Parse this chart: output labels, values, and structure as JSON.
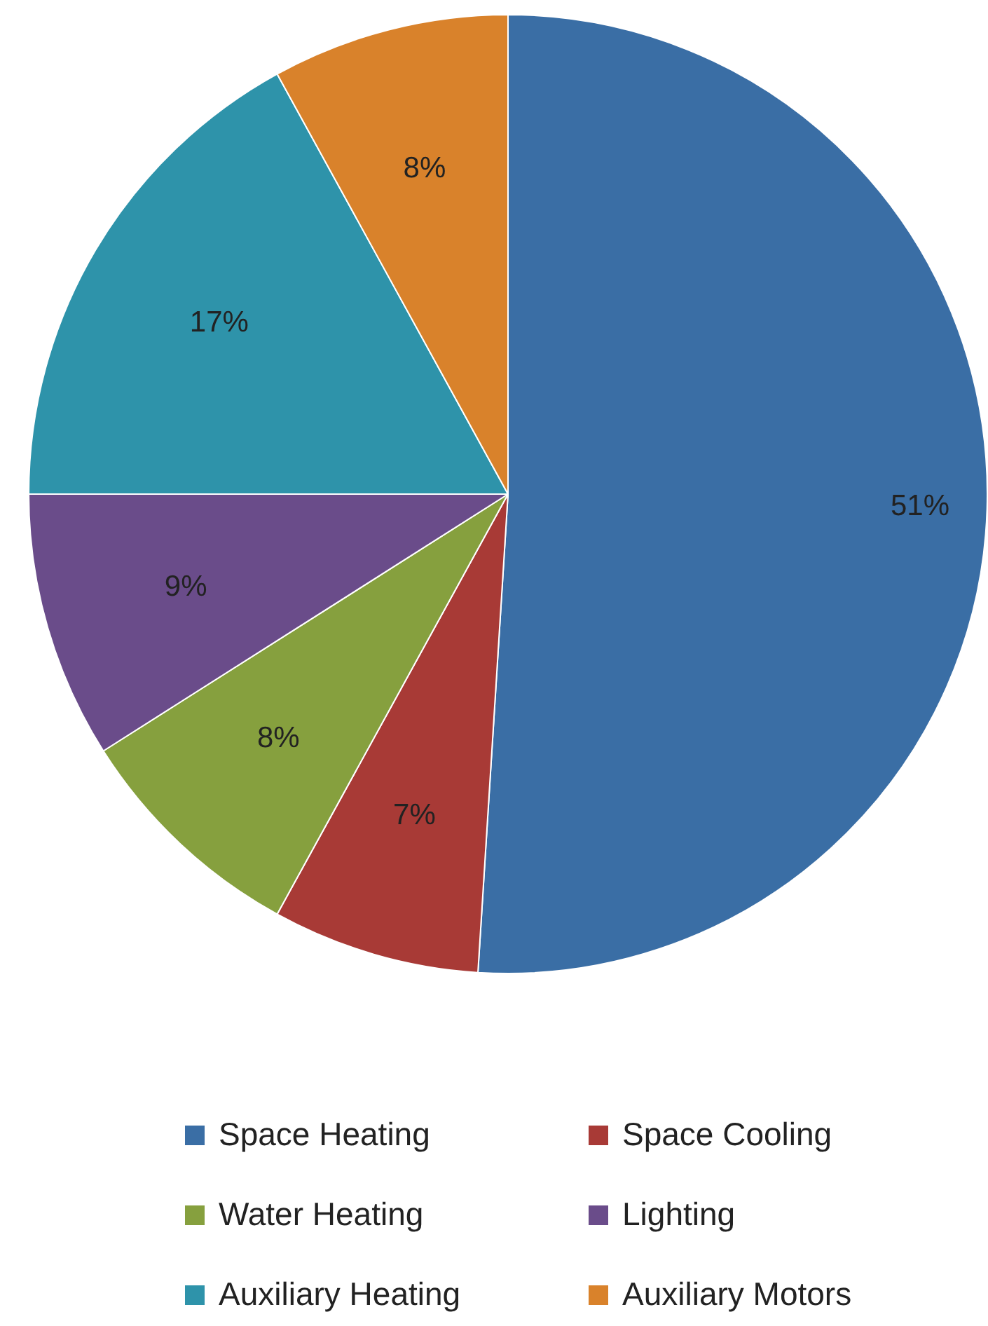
{
  "chart_data": {
    "type": "pie",
    "categories": [
      "Space Heating",
      "Space Cooling",
      "Water Heating",
      "Lighting",
      "Auxiliary Heating",
      "Auxiliary Motors"
    ],
    "values": [
      51,
      7,
      8,
      9,
      17,
      8
    ],
    "colors": [
      "#3a6ea5",
      "#a83a36",
      "#86a03e",
      "#6a4c8a",
      "#2e93aa",
      "#d9822b"
    ],
    "value_labels": [
      "51%",
      "7%",
      "8%",
      "9%",
      "17%",
      "8%"
    ],
    "legend": "bottom"
  }
}
